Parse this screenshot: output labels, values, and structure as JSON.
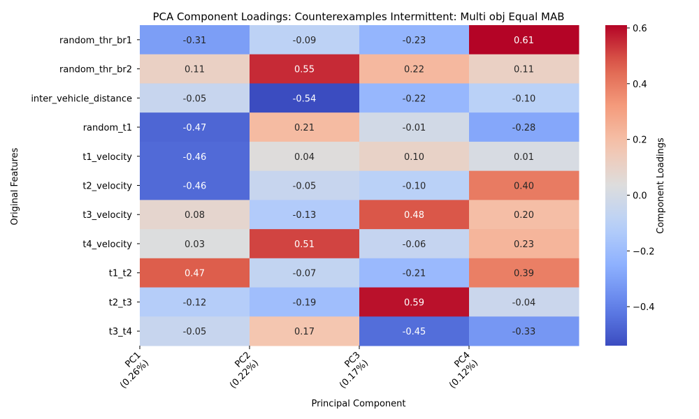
{
  "chart_data": {
    "type": "heatmap",
    "title": "PCA Component Loadings: Counterexamples Intermittent: Multi obj Equal MAB",
    "xlabel": "Principal Component",
    "ylabel": "Original Features",
    "colorbar_label": "Component Loadings",
    "colormap": "coolwarm",
    "vmin": -0.54,
    "vmax": 0.61,
    "colorbar_ticks": [
      "−0.4",
      "−0.2",
      "0.0",
      "0.2",
      "0.4",
      "0.6"
    ],
    "colorbar_tick_values": [
      -0.4,
      -0.2,
      0.0,
      0.2,
      0.4,
      0.6
    ],
    "columns": [
      "PC1\n(0.26%)",
      "PC2\n(0.22%)",
      "PC3\n(0.17%)",
      "PC4\n(0.12%)"
    ],
    "rows": [
      "random_thr_br1",
      "random_thr_br2",
      "inter_vehicle_distance",
      "random_t1",
      "t1_velocity",
      "t2_velocity",
      "t3_velocity",
      "t4_velocity",
      "t1_t2",
      "t2_t3",
      "t3_t4"
    ],
    "values": [
      [
        -0.31,
        -0.09,
        -0.23,
        0.61
      ],
      [
        0.11,
        0.55,
        0.22,
        0.11
      ],
      [
        -0.05,
        -0.54,
        -0.22,
        -0.1
      ],
      [
        -0.47,
        0.21,
        -0.01,
        -0.28
      ],
      [
        -0.46,
        0.04,
        0.1,
        0.01
      ],
      [
        -0.46,
        -0.05,
        -0.1,
        0.4
      ],
      [
        0.08,
        -0.13,
        0.48,
        0.2
      ],
      [
        0.03,
        0.51,
        -0.06,
        0.23
      ],
      [
        0.47,
        -0.07,
        -0.21,
        0.39
      ],
      [
        -0.12,
        -0.19,
        0.59,
        -0.04
      ],
      [
        -0.05,
        0.17,
        -0.45,
        -0.33
      ]
    ],
    "labels": [
      [
        "-0.31",
        "-0.09",
        "-0.23",
        "0.61"
      ],
      [
        "0.11",
        "0.55",
        "0.22",
        "0.11"
      ],
      [
        "-0.05",
        "-0.54",
        "-0.22",
        "-0.10"
      ],
      [
        "-0.47",
        "0.21",
        "-0.01",
        "-0.28"
      ],
      [
        "-0.46",
        "0.04",
        "0.10",
        "0.01"
      ],
      [
        "-0.46",
        "-0.05",
        "-0.10",
        "0.40"
      ],
      [
        "0.08",
        "-0.13",
        "0.48",
        "0.20"
      ],
      [
        "0.03",
        "0.51",
        "-0.06",
        "0.23"
      ],
      [
        "0.47",
        "-0.07",
        "-0.21",
        "0.39"
      ],
      [
        "-0.12",
        "-0.19",
        "0.59",
        "-0.04"
      ],
      [
        "-0.05",
        "0.17",
        "-0.45",
        "-0.33"
      ]
    ]
  }
}
